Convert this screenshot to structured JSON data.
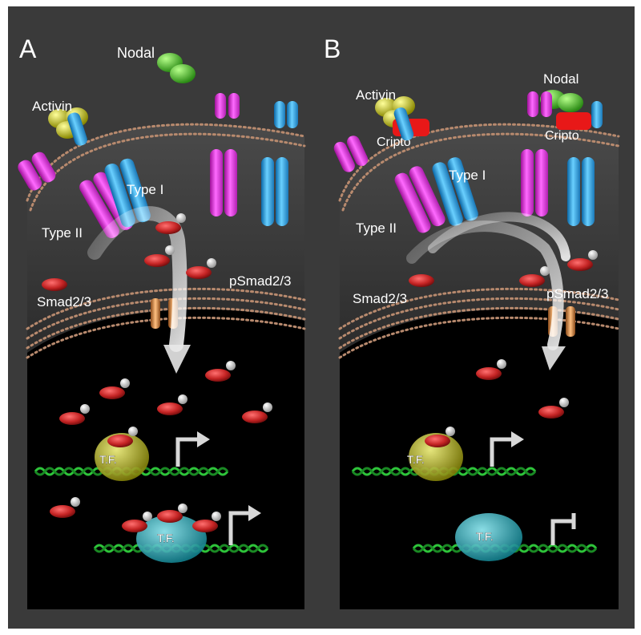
{
  "panels": [
    {
      "letter": "A",
      "labels": {
        "nodal": "Nodal",
        "activin": "Activin",
        "type1": "Type I",
        "type2": "Type II",
        "smad": "Smad2/3",
        "psmad": "pSmad2/3",
        "tf1": "T.F.",
        "tf2": "T.F."
      }
    },
    {
      "letter": "B",
      "labels": {
        "activin": "Activin",
        "nodal": "Nodal",
        "cripto1": "Cripto",
        "cripto2": "Cripto",
        "type1": "Type I",
        "type2": "Type II",
        "smad": "Smad2/3",
        "psmad": "pSmad2/3",
        "tf1": "T.F.",
        "tf2": "T.F."
      }
    }
  ],
  "colors": {
    "background": "#3a3a3a",
    "cell_interior": "#000000",
    "type2_receptor": "#e040e0",
    "type1_receptor": "#2aa8e8",
    "activin_ligand": "#d8d400",
    "nodal_ligand": "#4cc62a",
    "cripto": "#e81818",
    "smad": "#c42424",
    "phosphate": "#f0f0f0",
    "tf_yellow": "#d8d400",
    "tf_cyan": "#28c8d8",
    "dna": "#2ec43a",
    "membrane_beads": "#b88a6e",
    "nuclear_pore": "#d08840"
  }
}
